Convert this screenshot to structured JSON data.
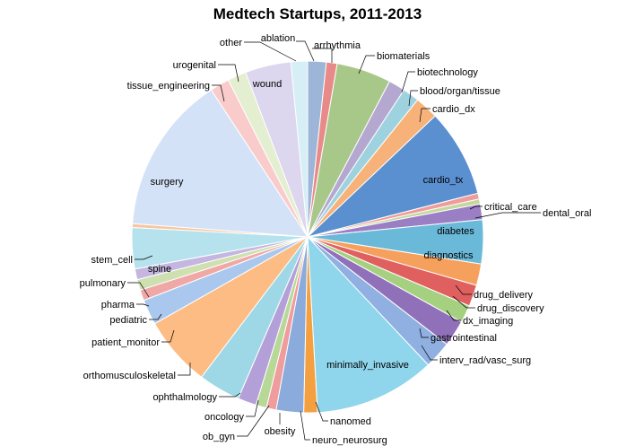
{
  "chart_data": {
    "type": "pie",
    "title": "Medtech Startups, 2011-2013",
    "categories": [
      "ablation",
      "arrhythmia",
      "biomaterials",
      "biotechnology",
      "blood/organ/tissue",
      "cardio_dx",
      "cardio_tx",
      "critical_care",
      "dental_oral",
      "diabetes",
      "diagnostics",
      "drug_delivery",
      "drug_discovery",
      "dx_imaging",
      "gastrointestinal",
      "interv_rad/vasc_surg",
      "minimally_invasive",
      "nanomed",
      "neuro_neurosurg",
      "obesity",
      "ob_gyn",
      "oncology",
      "ophthalmology",
      "orthomusculoskeletal",
      "patient_monitor",
      "pediatric",
      "pharma",
      "pulmonary",
      "spine",
      "stem_cell",
      "surgery",
      "tissue_engineering",
      "urogenital",
      "wound",
      "other"
    ],
    "values": [
      1.9,
      1.1,
      5.6,
      1.7,
      1.7,
      2.4,
      9.0,
      0.6,
      0.5,
      1.6,
      4.5,
      2.2,
      2.2,
      1.8,
      2.7,
      2.8,
      12.4,
      1.4,
      2.8,
      1.0,
      1.1,
      1.9,
      4.3,
      7.2,
      2.6,
      1.1,
      1.1,
      1.1,
      4.2,
      0.4,
      16.2,
      2.0,
      1.9,
      4.7,
      1.7
    ],
    "colors": [
      "#9db6d8",
      "#e88a88",
      "#a8c88a",
      "#b4a8d0",
      "#9fd2df",
      "#f7b27a",
      "#5a8fd0",
      "#ef9c9a",
      "#c4d89e",
      "#9a7fc4",
      "#6ab9d8",
      "#f5a05c",
      "#e06060",
      "#a5d080",
      "#9070b8",
      "#8fb0e0",
      "#8fd6ec",
      "#f4a040",
      "#8aabdb",
      "#ee9c9c",
      "#b8d898",
      "#b4a0d8",
      "#9ed8e6",
      "#fcbc84",
      "#aac8ee",
      "#f0a8a6",
      "#cfe0b0",
      "#c4b6e0",
      "#b6e2ee",
      "#f8c6a0",
      "#d4e2f7",
      "#f9cccb",
      "#e4eed0",
      "#dcd6ee",
      "#d6eef6"
    ]
  }
}
